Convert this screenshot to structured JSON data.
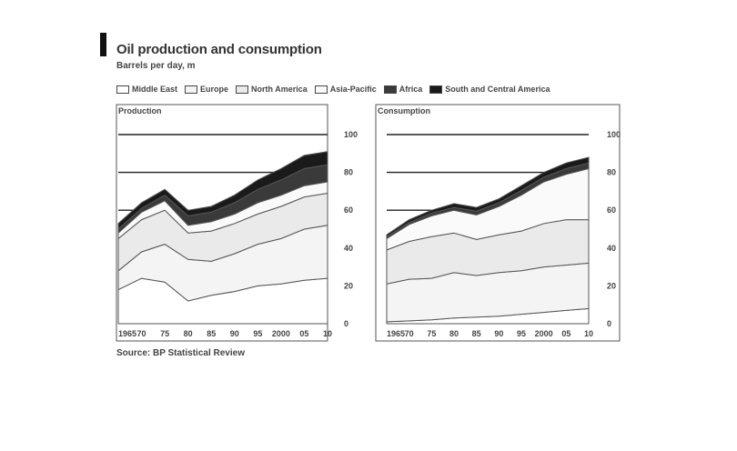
{
  "header": {
    "title": "Oil production and consumption",
    "subtitle": "Barrels per day, m"
  },
  "source": "Source: BP Statistical Review",
  "legend": [
    {
      "name": "Middle East",
      "color": "#ffffff"
    },
    {
      "name": "Europe",
      "color": "#f4f4f4"
    },
    {
      "name": "North America",
      "color": "#eaeaea"
    },
    {
      "name": "Asia-Pacific",
      "color": "#fafafa"
    },
    {
      "name": "Africa",
      "color": "#3a3a3a"
    },
    {
      "name": "South and Central America",
      "color": "#1a1a1a"
    }
  ],
  "chart_data": [
    {
      "type": "area",
      "title": "Production",
      "x": [
        1965,
        1970,
        1975,
        1980,
        1985,
        1990,
        1995,
        2000,
        2005,
        2010
      ],
      "tick_labels": [
        "1965",
        "70",
        "75",
        "80",
        "85",
        "90",
        "95",
        "2000",
        "05",
        "10"
      ],
      "ylim": [
        0,
        100
      ],
      "yticks": [
        0,
        20,
        40,
        60,
        80,
        100
      ],
      "series": [
        {
          "name": "Middle East",
          "values": [
            18,
            24,
            22,
            12,
            15,
            17,
            20,
            21,
            23,
            24
          ]
        },
        {
          "name": "Europe",
          "values": [
            10,
            14,
            20,
            22,
            18,
            20,
            22,
            24,
            27,
            28
          ]
        },
        {
          "name": "North America",
          "values": [
            17,
            17,
            18,
            14,
            16,
            16,
            16,
            17,
            17,
            17
          ]
        },
        {
          "name": "Asia-Pacific",
          "values": [
            3,
            4,
            5,
            4,
            5,
            5,
            6,
            6,
            6,
            6
          ]
        },
        {
          "name": "Africa",
          "values": [
            2,
            2,
            3,
            5,
            5,
            6,
            7,
            8,
            9,
            9
          ]
        },
        {
          "name": "South and Central America",
          "values": [
            3,
            3,
            3,
            3,
            3,
            4,
            5,
            6,
            7,
            7
          ]
        }
      ]
    },
    {
      "type": "area",
      "title": "Consumption",
      "x": [
        1965,
        1970,
        1975,
        1980,
        1985,
        1990,
        1995,
        2000,
        2005,
        2010
      ],
      "tick_labels": [
        "1965",
        "70",
        "75",
        "80",
        "85",
        "90",
        "95",
        "2000",
        "05",
        "10"
      ],
      "ylim": [
        0,
        100
      ],
      "yticks": [
        0,
        20,
        40,
        60,
        80,
        100
      ],
      "series": [
        {
          "name": "Middle East",
          "values": [
            1,
            1.5,
            2,
            3,
            3.5,
            4,
            5,
            6,
            7,
            8
          ]
        },
        {
          "name": "Europe",
          "values": [
            20,
            22,
            22,
            24,
            22,
            23,
            23,
            24,
            24,
            24
          ]
        },
        {
          "name": "North America",
          "values": [
            18,
            20,
            22,
            21,
            19,
            20,
            21,
            23,
            24,
            23
          ]
        },
        {
          "name": "Asia-Pacific",
          "values": [
            6,
            9,
            11,
            12,
            13,
            15,
            19,
            22,
            24,
            27
          ]
        },
        {
          "name": "Africa",
          "values": [
            1,
            1,
            1.5,
            1.5,
            2,
            2,
            2.5,
            2.5,
            3,
            3
          ]
        },
        {
          "name": "South and Central America",
          "values": [
            1,
            1.5,
            1.5,
            2,
            2,
            2,
            2.5,
            2.5,
            3,
            3
          ]
        }
      ]
    }
  ]
}
